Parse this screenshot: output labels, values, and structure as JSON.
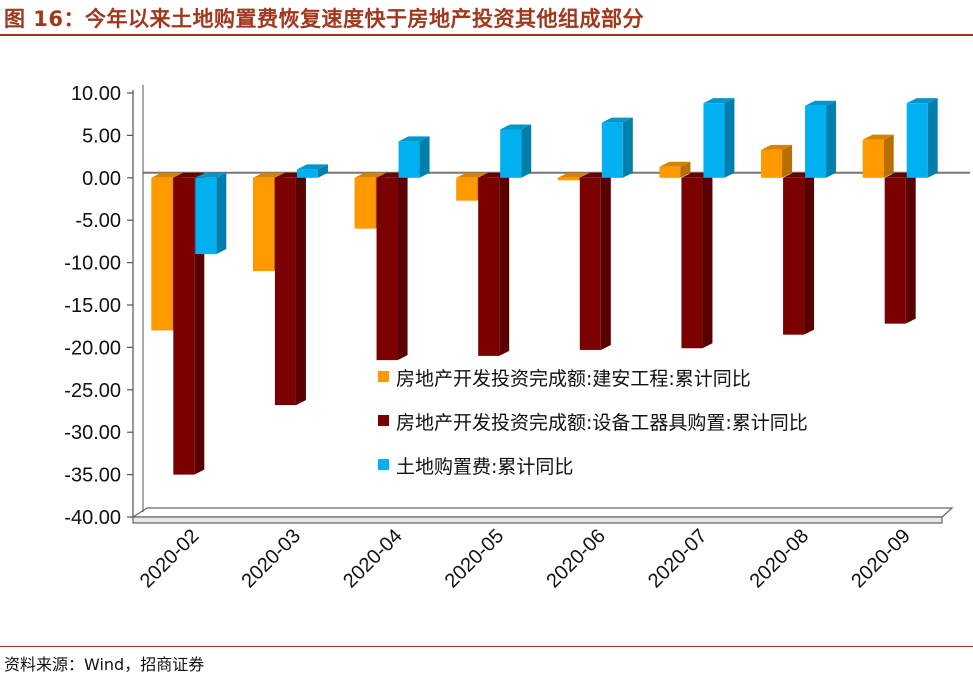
{
  "title": "图 16：今年以来土地购置费恢复速度快于房地产投资其他组成部分",
  "source": "资料来源：Wind，招商证券",
  "chart_data": {
    "type": "bar",
    "categories": [
      "2020-02",
      "2020-03",
      "2020-04",
      "2020-05",
      "2020-06",
      "2020-07",
      "2020-08",
      "2020-09"
    ],
    "series": [
      {
        "name": "房地产开发投资完成额:建安工程:累计同比",
        "color": "#ff9900",
        "values": [
          -18.0,
          -11.0,
          -6.0,
          -2.7,
          -0.3,
          1.3,
          3.3,
          4.5
        ]
      },
      {
        "name": "房地产开发投资完成额:设备工器具购置:累计同比",
        "color": "#7b0000",
        "values": [
          -35.0,
          -26.8,
          -21.5,
          -21.0,
          -20.3,
          -20.1,
          -18.5,
          -17.2
        ]
      },
      {
        "name": "土地购置费:累计同比",
        "color": "#00b0f0",
        "values": [
          -9.0,
          1.0,
          4.3,
          5.7,
          6.5,
          8.8,
          8.5,
          8.8
        ]
      }
    ],
    "ylim": [
      -40,
      10
    ],
    "yticks": [
      "10.00",
      "5.00",
      "0.00",
      "-5.00",
      "-10.00",
      "-15.00",
      "-20.00",
      "-25.00",
      "-30.00",
      "-35.00",
      "-40.00"
    ],
    "legend_position": "lower-right",
    "grid": false
  }
}
